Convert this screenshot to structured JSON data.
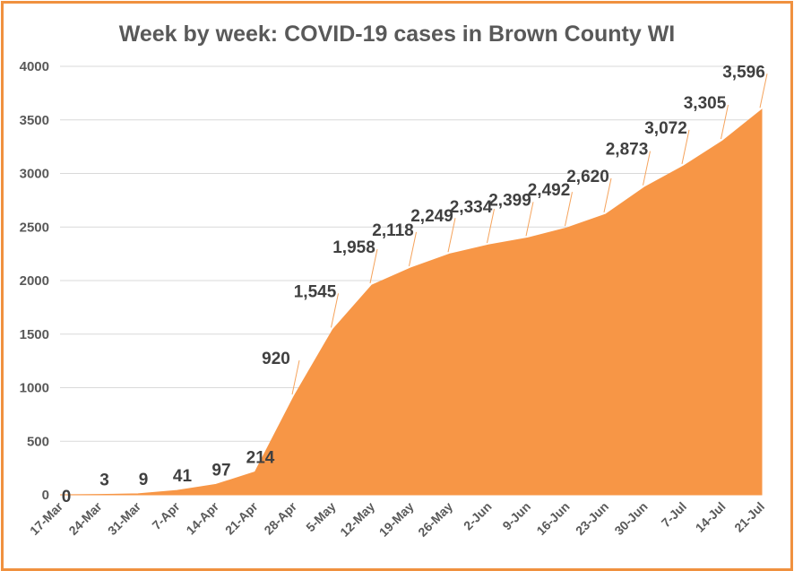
{
  "chart_data": {
    "type": "area",
    "title": "Week by week:  COVID-19 cases in Brown County WI",
    "xlabel": "",
    "ylabel": "",
    "ylim": [
      0,
      4000
    ],
    "yticks": [
      0,
      500,
      1000,
      1500,
      2000,
      2500,
      3000,
      3500,
      4000
    ],
    "grid": true,
    "fill_color": "#f79646",
    "categories": [
      "17-Mar",
      "24-Mar",
      "31-Mar",
      "7-Apr",
      "14-Apr",
      "21-Apr",
      "28-Apr",
      "5-May",
      "12-May",
      "19-May",
      "26-May",
      "2-Jun",
      "9-Jun",
      "16-Jun",
      "23-Jun",
      "30-Jun",
      "7-Jul",
      "14-Jul",
      "21-Jul"
    ],
    "values": [
      0,
      3,
      9,
      41,
      97,
      214,
      920,
      1545,
      1958,
      2118,
      2249,
      2334,
      2399,
      2492,
      2620,
      2873,
      3072,
      3305,
      3596
    ],
    "data_labels": [
      "0",
      "3",
      "9",
      "41",
      "97",
      "214",
      "920",
      "1,545",
      "1,958",
      "2,118",
      "2,249",
      "2,334",
      "2,399",
      "2,492",
      "2,620",
      "2,873",
      "3,072",
      "3,305",
      "3,596"
    ]
  }
}
